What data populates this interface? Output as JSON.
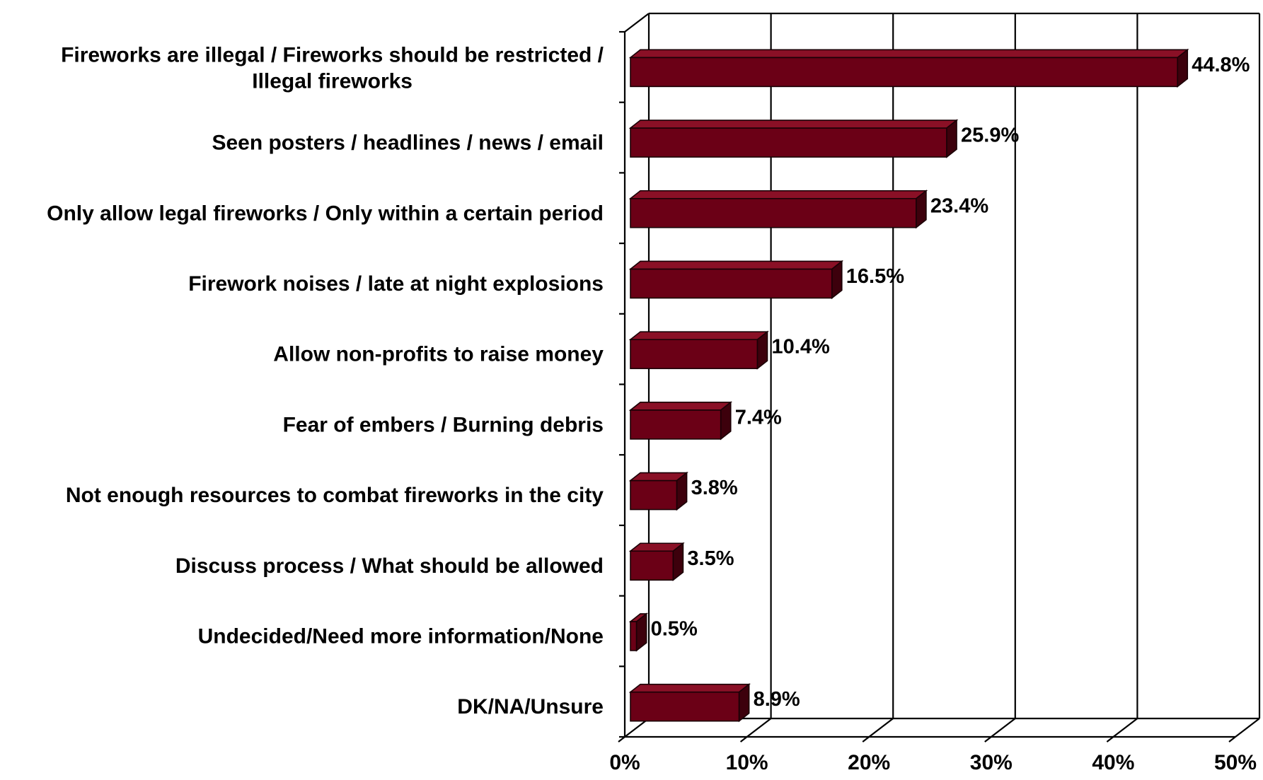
{
  "chart_data": {
    "type": "bar",
    "orientation": "horizontal",
    "style": "3d",
    "categories": [
      [
        "Fireworks are illegal / Fireworks should be restricted /",
        "Illegal fireworks"
      ],
      [
        "Seen posters / headlines / news / email"
      ],
      [
        "Only allow legal fireworks / Only within a certain period"
      ],
      [
        "Firework noises / late at night explosions"
      ],
      [
        "Allow non-profits to raise money"
      ],
      [
        "Fear of embers / Burning debris"
      ],
      [
        "Not enough resources to combat fireworks in the city"
      ],
      [
        "Discuss process / What should be allowed"
      ],
      [
        "Undecided/Need more information/None"
      ],
      [
        "DK/NA/Unsure"
      ]
    ],
    "values": [
      44.8,
      25.9,
      23.4,
      16.5,
      10.4,
      7.4,
      3.8,
      3.5,
      0.5,
      8.9
    ],
    "value_labels": [
      "44.8%",
      "25.9%",
      "23.4%",
      "16.5%",
      "10.4%",
      "7.4%",
      "3.8%",
      "3.5%",
      "0.5%",
      "8.9%"
    ],
    "x_ticks": [
      "0%",
      "10%",
      "20%",
      "30%",
      "40%",
      "50%"
    ],
    "xlim": [
      0,
      50
    ],
    "grid": true,
    "legend": false,
    "bar_color": "#6b0016",
    "title": "",
    "xlabel": "",
    "ylabel": ""
  }
}
